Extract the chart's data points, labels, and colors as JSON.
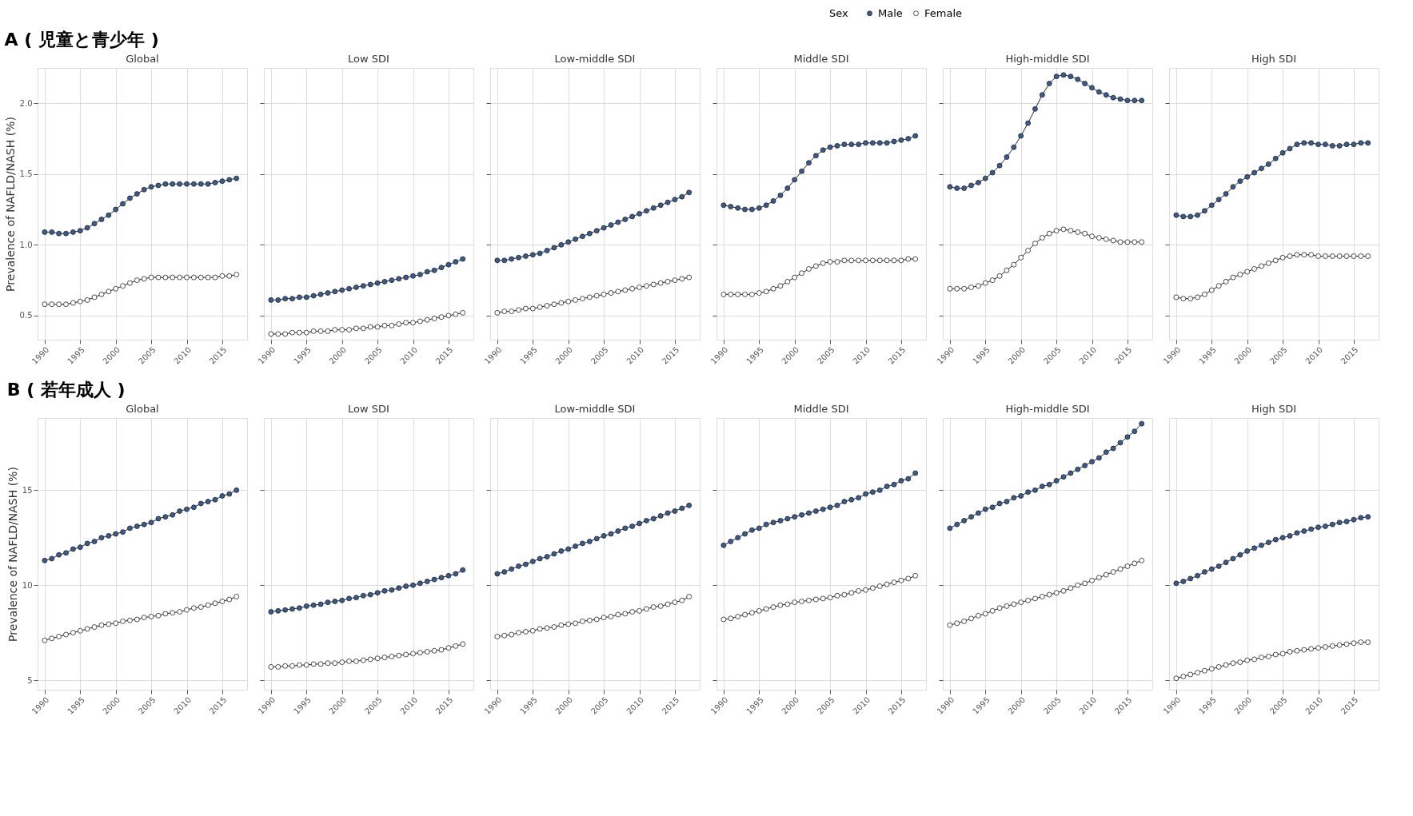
{
  "chart_data": [
    {
      "type": "line",
      "title": "Global",
      "ylabel": "Prevalence of NAFLD/NASH (%)",
      "annotations": [
        "A ( 児童と青少年 )"
      ],
      "legend_title": "Sex",
      "legend": "top",
      "marker": "circle",
      "line_style": "solid",
      "grid": true,
      "tick_labels": true,
      "x": [
        1990,
        1991,
        1992,
        1993,
        1994,
        1995,
        1996,
        1997,
        1998,
        1999,
        2000,
        2001,
        2002,
        2003,
        2004,
        2005,
        2006,
        2007,
        2008,
        2009,
        2010,
        2011,
        2012,
        2013,
        2014,
        2015,
        2016,
        2017
      ],
      "xlim": [
        1989,
        2018.5
      ],
      "xticks": [
        1990,
        1995,
        2000,
        2005,
        2010,
        2015
      ],
      "ylim": [
        0.33,
        2.25
      ],
      "yticks": [
        0.5,
        {
          "value": 1,
          "label": "1.0"
        },
        1.5,
        {
          "value": 2,
          "label": "2.0"
        }
      ],
      "series": [
        {
          "name": "Male",
          "color": "#3b5b8c",
          "values": [
            1.09,
            1.09,
            1.08,
            1.08,
            1.09,
            1.1,
            1.12,
            1.15,
            1.18,
            1.21,
            1.25,
            1.29,
            1.33,
            1.36,
            1.39,
            1.41,
            1.42,
            1.43,
            1.43,
            1.43,
            1.43,
            1.43,
            1.43,
            1.43,
            1.44,
            1.45,
            1.46,
            1.47
          ]
        },
        {
          "name": "Female",
          "color": "#ffffff",
          "values": [
            0.58,
            0.58,
            0.58,
            0.58,
            0.59,
            0.6,
            0.61,
            0.63,
            0.65,
            0.67,
            0.69,
            0.71,
            0.73,
            0.75,
            0.76,
            0.77,
            0.77,
            0.77,
            0.77,
            0.77,
            0.77,
            0.77,
            0.77,
            0.77,
            0.77,
            0.78,
            0.78,
            0.79
          ]
        }
      ]
    },
    {
      "type": "line",
      "title": "Low SDI",
      "marker": "circle",
      "line_style": "solid",
      "grid": true,
      "tick_labels": "x",
      "x": [
        1990,
        1991,
        1992,
        1993,
        1994,
        1995,
        1996,
        1997,
        1998,
        1999,
        2000,
        2001,
        2002,
        2003,
        2004,
        2005,
        2006,
        2007,
        2008,
        2009,
        2010,
        2011,
        2012,
        2013,
        2014,
        2015,
        2016,
        2017
      ],
      "xlim": [
        1989,
        2018.5
      ],
      "xticks": [
        1990,
        1995,
        2000,
        2005,
        2010,
        2015
      ],
      "ylim": [
        0.33,
        2.25
      ],
      "yticks": [
        0.5,
        1.0,
        1.5,
        2.0
      ],
      "series": [
        {
          "name": "Male",
          "color": "#3b5b8c",
          "values": [
            0.61,
            0.61,
            0.62,
            0.62,
            0.63,
            0.63,
            0.64,
            0.65,
            0.66,
            0.67,
            0.68,
            0.69,
            0.7,
            0.71,
            0.72,
            0.73,
            0.74,
            0.75,
            0.76,
            0.77,
            0.78,
            0.79,
            0.81,
            0.82,
            0.84,
            0.86,
            0.88,
            0.9
          ]
        },
        {
          "name": "Female",
          "color": "#ffffff",
          "values": [
            0.37,
            0.37,
            0.37,
            0.38,
            0.38,
            0.38,
            0.39,
            0.39,
            0.39,
            0.4,
            0.4,
            0.4,
            0.41,
            0.41,
            0.42,
            0.42,
            0.43,
            0.43,
            0.44,
            0.45,
            0.45,
            0.46,
            0.47,
            0.48,
            0.49,
            0.5,
            0.51,
            0.52
          ]
        }
      ]
    },
    {
      "type": "line",
      "title": "Low-middle SDI",
      "marker": "circle",
      "line_style": "solid",
      "grid": true,
      "tick_labels": "x",
      "x": [
        1990,
        1991,
        1992,
        1993,
        1994,
        1995,
        1996,
        1997,
        1998,
        1999,
        2000,
        2001,
        2002,
        2003,
        2004,
        2005,
        2006,
        2007,
        2008,
        2009,
        2010,
        2011,
        2012,
        2013,
        2014,
        2015,
        2016,
        2017
      ],
      "xlim": [
        1989,
        2018.5
      ],
      "xticks": [
        1990,
        1995,
        2000,
        2005,
        2010,
        2015
      ],
      "ylim": [
        0.33,
        2.25
      ],
      "yticks": [
        0.5,
        1.0,
        1.5,
        2.0
      ],
      "series": [
        {
          "name": "Male",
          "color": "#3b5b8c",
          "values": [
            0.89,
            0.89,
            0.9,
            0.91,
            0.92,
            0.93,
            0.94,
            0.96,
            0.98,
            1.0,
            1.02,
            1.04,
            1.06,
            1.08,
            1.1,
            1.12,
            1.14,
            1.16,
            1.18,
            1.2,
            1.22,
            1.24,
            1.26,
            1.28,
            1.3,
            1.32,
            1.34,
            1.37
          ]
        },
        {
          "name": "Female",
          "color": "#ffffff",
          "values": [
            0.52,
            0.53,
            0.53,
            0.54,
            0.55,
            0.55,
            0.56,
            0.57,
            0.58,
            0.59,
            0.6,
            0.61,
            0.62,
            0.63,
            0.64,
            0.65,
            0.66,
            0.67,
            0.68,
            0.69,
            0.7,
            0.71,
            0.72,
            0.73,
            0.74,
            0.75,
            0.76,
            0.77
          ]
        }
      ]
    },
    {
      "type": "line",
      "title": "Middle SDI",
      "marker": "circle",
      "line_style": "solid",
      "grid": true,
      "tick_labels": "x",
      "x": [
        1990,
        1991,
        1992,
        1993,
        1994,
        1995,
        1996,
        1997,
        1998,
        1999,
        2000,
        2001,
        2002,
        2003,
        2004,
        2005,
        2006,
        2007,
        2008,
        2009,
        2010,
        2011,
        2012,
        2013,
        2014,
        2015,
        2016,
        2017
      ],
      "xlim": [
        1989,
        2018.5
      ],
      "xticks": [
        1990,
        1995,
        2000,
        2005,
        2010,
        2015
      ],
      "ylim": [
        0.33,
        2.25
      ],
      "yticks": [
        0.5,
        1.0,
        1.5,
        2.0
      ],
      "series": [
        {
          "name": "Male",
          "color": "#3b5b8c",
          "values": [
            1.28,
            1.27,
            1.26,
            1.25,
            1.25,
            1.26,
            1.28,
            1.31,
            1.35,
            1.4,
            1.46,
            1.52,
            1.58,
            1.63,
            1.67,
            1.69,
            1.7,
            1.71,
            1.71,
            1.71,
            1.72,
            1.72,
            1.72,
            1.72,
            1.73,
            1.74,
            1.75,
            1.77
          ]
        },
        {
          "name": "Female",
          "color": "#ffffff",
          "values": [
            0.65,
            0.65,
            0.65,
            0.65,
            0.65,
            0.66,
            0.67,
            0.69,
            0.71,
            0.74,
            0.77,
            0.8,
            0.83,
            0.85,
            0.87,
            0.88,
            0.88,
            0.89,
            0.89,
            0.89,
            0.89,
            0.89,
            0.89,
            0.89,
            0.89,
            0.89,
            0.9,
            0.9
          ]
        }
      ]
    },
    {
      "type": "line",
      "title": "High-middle SDI",
      "marker": "circle",
      "line_style": "solid",
      "grid": true,
      "tick_labels": "x",
      "x": [
        1990,
        1991,
        1992,
        1993,
        1994,
        1995,
        1996,
        1997,
        1998,
        1999,
        2000,
        2001,
        2002,
        2003,
        2004,
        2005,
        2006,
        2007,
        2008,
        2009,
        2010,
        2011,
        2012,
        2013,
        2014,
        2015,
        2016,
        2017
      ],
      "xlim": [
        1989,
        2018.5
      ],
      "xticks": [
        1990,
        1995,
        2000,
        2005,
        2010,
        2015
      ],
      "ylim": [
        0.33,
        2.25
      ],
      "yticks": [
        0.5,
        1.0,
        1.5,
        2.0
      ],
      "series": [
        {
          "name": "Male",
          "color": "#3b5b8c",
          "values": [
            1.41,
            1.4,
            1.4,
            1.42,
            1.44,
            1.47,
            1.51,
            1.56,
            1.62,
            1.69,
            1.77,
            1.86,
            1.96,
            2.06,
            2.14,
            2.19,
            2.2,
            2.19,
            2.17,
            2.14,
            2.11,
            2.08,
            2.06,
            2.04,
            2.03,
            2.02,
            2.02,
            2.02
          ]
        },
        {
          "name": "Female",
          "color": "#ffffff",
          "values": [
            0.69,
            0.69,
            0.69,
            0.7,
            0.71,
            0.73,
            0.75,
            0.78,
            0.82,
            0.86,
            0.91,
            0.96,
            1.01,
            1.05,
            1.08,
            1.1,
            1.11,
            1.1,
            1.09,
            1.08,
            1.06,
            1.05,
            1.04,
            1.03,
            1.02,
            1.02,
            1.02,
            1.02
          ]
        }
      ]
    },
    {
      "type": "line",
      "title": "High SDI",
      "marker": "circle",
      "line_style": "solid",
      "grid": true,
      "tick_labels": "x",
      "x": [
        1990,
        1991,
        1992,
        1993,
        1994,
        1995,
        1996,
        1997,
        1998,
        1999,
        2000,
        2001,
        2002,
        2003,
        2004,
        2005,
        2006,
        2007,
        2008,
        2009,
        2010,
        2011,
        2012,
        2013,
        2014,
        2015,
        2016,
        2017
      ],
      "xlim": [
        1989,
        2018.5
      ],
      "xticks": [
        1990,
        1995,
        2000,
        2005,
        2010,
        2015
      ],
      "ylim": [
        0.33,
        2.25
      ],
      "yticks": [
        0.5,
        1.0,
        1.5,
        2.0
      ],
      "series": [
        {
          "name": "Male",
          "color": "#3b5b8c",
          "values": [
            1.21,
            1.2,
            1.2,
            1.21,
            1.24,
            1.28,
            1.32,
            1.36,
            1.41,
            1.45,
            1.48,
            1.51,
            1.54,
            1.57,
            1.61,
            1.65,
            1.68,
            1.71,
            1.72,
            1.72,
            1.71,
            1.71,
            1.7,
            1.7,
            1.71,
            1.71,
            1.72,
            1.72
          ]
        },
        {
          "name": "Female",
          "color": "#ffffff",
          "values": [
            0.63,
            0.62,
            0.62,
            0.63,
            0.65,
            0.68,
            0.71,
            0.74,
            0.77,
            0.79,
            0.81,
            0.83,
            0.85,
            0.87,
            0.89,
            0.91,
            0.92,
            0.93,
            0.93,
            0.93,
            0.92,
            0.92,
            0.92,
            0.92,
            0.92,
            0.92,
            0.92,
            0.92
          ]
        }
      ]
    },
    {
      "type": "line",
      "title": "Global",
      "ylabel": "Prevalence of NAFLD/NASH (%)",
      "annotations": [
        "B ( 若年成人 )"
      ],
      "marker": "circle",
      "line_style": "solid",
      "grid": true,
      "tick_labels": true,
      "x": [
        1990,
        1991,
        1992,
        1993,
        1994,
        1995,
        1996,
        1997,
        1998,
        1999,
        2000,
        2001,
        2002,
        2003,
        2004,
        2005,
        2006,
        2007,
        2008,
        2009,
        2010,
        2011,
        2012,
        2013,
        2014,
        2015,
        2016,
        2017
      ],
      "xlim": [
        1989,
        2018.5
      ],
      "xticks": [
        1990,
        1995,
        2000,
        2005,
        2010,
        2015
      ],
      "ylim": [
        4.5,
        18.8
      ],
      "yticks": [
        5,
        10,
        15
      ],
      "series": [
        {
          "name": "Male",
          "color": "#3b5b8c",
          "values": [
            11.3,
            11.4,
            11.6,
            11.7,
            11.9,
            12.0,
            12.2,
            12.3,
            12.5,
            12.6,
            12.7,
            12.8,
            13.0,
            13.1,
            13.2,
            13.3,
            13.5,
            13.6,
            13.7,
            13.9,
            14.0,
            14.1,
            14.3,
            14.4,
            14.5,
            14.7,
            14.8,
            15.0
          ]
        },
        {
          "name": "Female",
          "color": "#ffffff",
          "values": [
            7.1,
            7.2,
            7.3,
            7.4,
            7.5,
            7.6,
            7.7,
            7.8,
            7.9,
            7.95,
            8.0,
            8.1,
            8.15,
            8.2,
            8.3,
            8.35,
            8.4,
            8.5,
            8.55,
            8.6,
            8.7,
            8.8,
            8.85,
            8.95,
            9.05,
            9.15,
            9.25,
            9.4
          ]
        }
      ]
    },
    {
      "type": "line",
      "title": "Low SDI",
      "marker": "circle",
      "line_style": "solid",
      "grid": true,
      "tick_labels": "x",
      "x": [
        1990,
        1991,
        1992,
        1993,
        1994,
        1995,
        1996,
        1997,
        1998,
        1999,
        2000,
        2001,
        2002,
        2003,
        2004,
        2005,
        2006,
        2007,
        2008,
        2009,
        2010,
        2011,
        2012,
        2013,
        2014,
        2015,
        2016,
        2017
      ],
      "xlim": [
        1989,
        2018.5
      ],
      "xticks": [
        1990,
        1995,
        2000,
        2005,
        2010,
        2015
      ],
      "ylim": [
        4.5,
        18.8
      ],
      "yticks": [
        5,
        10,
        15
      ],
      "series": [
        {
          "name": "Male",
          "color": "#3b5b8c",
          "values": [
            8.6,
            8.65,
            8.7,
            8.75,
            8.8,
            8.9,
            8.95,
            9.0,
            9.1,
            9.15,
            9.2,
            9.3,
            9.35,
            9.45,
            9.5,
            9.6,
            9.7,
            9.75,
            9.85,
            9.95,
            10.0,
            10.1,
            10.2,
            10.3,
            10.4,
            10.5,
            10.6,
            10.8
          ]
        },
        {
          "name": "Female",
          "color": "#ffffff",
          "values": [
            5.7,
            5.7,
            5.75,
            5.75,
            5.8,
            5.8,
            5.85,
            5.85,
            5.9,
            5.9,
            5.95,
            6.0,
            6.0,
            6.05,
            6.1,
            6.15,
            6.2,
            6.25,
            6.3,
            6.35,
            6.4,
            6.45,
            6.5,
            6.55,
            6.6,
            6.7,
            6.8,
            6.9
          ]
        }
      ]
    },
    {
      "type": "line",
      "title": "Low-middle SDI",
      "marker": "circle",
      "line_style": "solid",
      "grid": true,
      "tick_labels": "x",
      "x": [
        1990,
        1991,
        1992,
        1993,
        1994,
        1995,
        1996,
        1997,
        1998,
        1999,
        2000,
        2001,
        2002,
        2003,
        2004,
        2005,
        2006,
        2007,
        2008,
        2009,
        2010,
        2011,
        2012,
        2013,
        2014,
        2015,
        2016,
        2017
      ],
      "xlim": [
        1989,
        2018.5
      ],
      "xticks": [
        1990,
        1995,
        2000,
        2005,
        2010,
        2015
      ],
      "ylim": [
        4.5,
        18.8
      ],
      "yticks": [
        5,
        10,
        15
      ],
      "series": [
        {
          "name": "Male",
          "color": "#3b5b8c",
          "values": [
            10.6,
            10.7,
            10.85,
            11.0,
            11.1,
            11.25,
            11.4,
            11.5,
            11.65,
            11.8,
            11.9,
            12.05,
            12.2,
            12.3,
            12.45,
            12.6,
            12.7,
            12.85,
            13.0,
            13.1,
            13.25,
            13.4,
            13.5,
            13.65,
            13.8,
            13.9,
            14.05,
            14.2
          ]
        },
        {
          "name": "Female",
          "color": "#ffffff",
          "values": [
            7.3,
            7.35,
            7.4,
            7.5,
            7.55,
            7.6,
            7.7,
            7.75,
            7.8,
            7.9,
            7.95,
            8.0,
            8.1,
            8.15,
            8.2,
            8.3,
            8.35,
            8.45,
            8.5,
            8.6,
            8.65,
            8.75,
            8.85,
            8.9,
            9.0,
            9.1,
            9.2,
            9.4
          ]
        }
      ]
    },
    {
      "type": "line",
      "title": "Middle SDI",
      "marker": "circle",
      "line_style": "solid",
      "grid": true,
      "tick_labels": "x",
      "x": [
        1990,
        1991,
        1992,
        1993,
        1994,
        1995,
        1996,
        1997,
        1998,
        1999,
        2000,
        2001,
        2002,
        2003,
        2004,
        2005,
        2006,
        2007,
        2008,
        2009,
        2010,
        2011,
        2012,
        2013,
        2014,
        2015,
        2016,
        2017
      ],
      "xlim": [
        1989,
        2018.5
      ],
      "xticks": [
        1990,
        1995,
        2000,
        2005,
        2010,
        2015
      ],
      "ylim": [
        4.5,
        18.8
      ],
      "yticks": [
        5,
        10,
        15
      ],
      "series": [
        {
          "name": "Male",
          "color": "#3b5b8c",
          "values": [
            12.1,
            12.3,
            12.5,
            12.7,
            12.9,
            13.0,
            13.2,
            13.3,
            13.4,
            13.5,
            13.6,
            13.7,
            13.8,
            13.9,
            14.0,
            14.1,
            14.2,
            14.4,
            14.5,
            14.6,
            14.8,
            14.9,
            15.0,
            15.2,
            15.3,
            15.5,
            15.6,
            15.9
          ]
        },
        {
          "name": "Female",
          "color": "#ffffff",
          "values": [
            8.2,
            8.25,
            8.35,
            8.45,
            8.55,
            8.65,
            8.75,
            8.85,
            8.95,
            9.0,
            9.1,
            9.15,
            9.2,
            9.25,
            9.3,
            9.35,
            9.45,
            9.5,
            9.6,
            9.7,
            9.75,
            9.85,
            9.95,
            10.05,
            10.15,
            10.25,
            10.35,
            10.5
          ]
        }
      ]
    },
    {
      "type": "line",
      "title": "High-middle SDI",
      "marker": "circle",
      "line_style": "solid",
      "grid": true,
      "tick_labels": "x",
      "x": [
        1990,
        1991,
        1992,
        1993,
        1994,
        1995,
        1996,
        1997,
        1998,
        1999,
        2000,
        2001,
        2002,
        2003,
        2004,
        2005,
        2006,
        2007,
        2008,
        2009,
        2010,
        2011,
        2012,
        2013,
        2014,
        2015,
        2016,
        2017
      ],
      "xlim": [
        1989,
        2018.5
      ],
      "xticks": [
        1990,
        1995,
        2000,
        2005,
        2010,
        2015
      ],
      "ylim": [
        4.5,
        18.8
      ],
      "yticks": [
        5,
        10,
        15
      ],
      "series": [
        {
          "name": "Male",
          "color": "#3b5b8c",
          "values": [
            13.0,
            13.2,
            13.4,
            13.6,
            13.8,
            14.0,
            14.1,
            14.3,
            14.4,
            14.6,
            14.7,
            14.9,
            15.0,
            15.2,
            15.3,
            15.5,
            15.7,
            15.9,
            16.1,
            16.3,
            16.5,
            16.7,
            17.0,
            17.2,
            17.5,
            17.8,
            18.1,
            18.5
          ]
        },
        {
          "name": "Female",
          "color": "#ffffff",
          "values": [
            7.9,
            8.0,
            8.1,
            8.25,
            8.4,
            8.5,
            8.65,
            8.8,
            8.9,
            9.0,
            9.1,
            9.2,
            9.3,
            9.4,
            9.5,
            9.6,
            9.7,
            9.85,
            10.0,
            10.1,
            10.25,
            10.4,
            10.55,
            10.7,
            10.85,
            11.0,
            11.15,
            11.3
          ]
        }
      ]
    },
    {
      "type": "line",
      "title": "High SDI",
      "marker": "circle",
      "line_style": "solid",
      "grid": true,
      "tick_labels": "x",
      "x": [
        1990,
        1991,
        1992,
        1993,
        1994,
        1995,
        1996,
        1997,
        1998,
        1999,
        2000,
        2001,
        2002,
        2003,
        2004,
        2005,
        2006,
        2007,
        2008,
        2009,
        2010,
        2011,
        2012,
        2013,
        2014,
        2015,
        2016,
        2017
      ],
      "xlim": [
        1989,
        2018.5
      ],
      "xticks": [
        1990,
        1995,
        2000,
        2005,
        2010,
        2015
      ],
      "ylim": [
        4.5,
        18.8
      ],
      "yticks": [
        5,
        10,
        15
      ],
      "series": [
        {
          "name": "Male",
          "color": "#3b5b8c",
          "values": [
            10.1,
            10.2,
            10.35,
            10.5,
            10.7,
            10.85,
            11.0,
            11.2,
            11.4,
            11.6,
            11.8,
            11.95,
            12.1,
            12.25,
            12.4,
            12.5,
            12.6,
            12.75,
            12.85,
            12.95,
            13.05,
            13.1,
            13.2,
            13.3,
            13.35,
            13.45,
            13.55,
            13.6
          ]
        },
        {
          "name": "Female",
          "color": "#ffffff",
          "values": [
            5.1,
            5.2,
            5.3,
            5.4,
            5.5,
            5.6,
            5.7,
            5.8,
            5.9,
            5.95,
            6.05,
            6.1,
            6.2,
            6.25,
            6.35,
            6.4,
            6.5,
            6.55,
            6.6,
            6.65,
            6.7,
            6.75,
            6.8,
            6.85,
            6.9,
            6.95,
            7.0,
            7.0
          ]
        }
      ]
    }
  ]
}
